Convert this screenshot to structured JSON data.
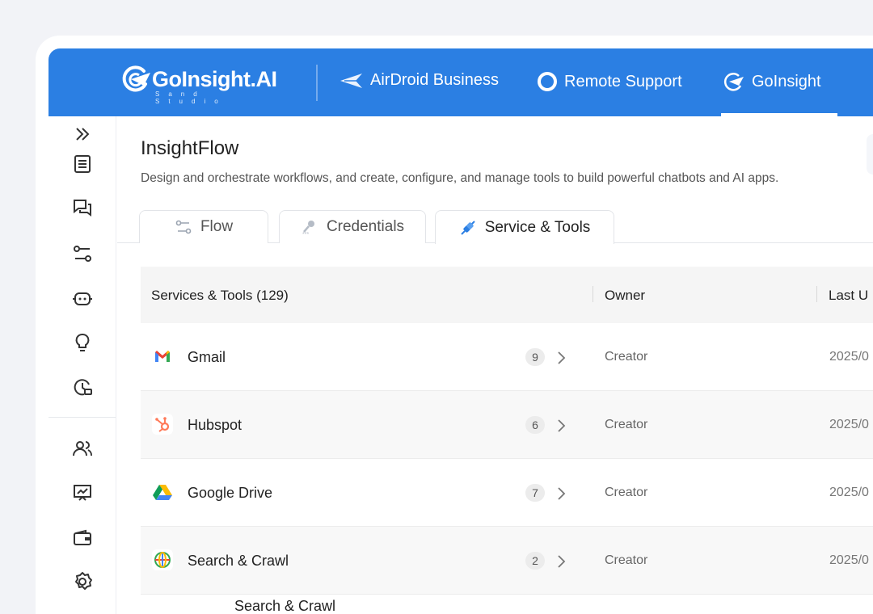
{
  "header": {
    "logo_text": "GoInsight.AI",
    "logo_sub": "Sand Studio",
    "products": [
      {
        "label": "AirDroid Business",
        "icon": "paper-plane-icon"
      },
      {
        "label": "Remote Support",
        "icon": "lifebuoy-icon"
      },
      {
        "label": "GoInsight",
        "icon": "goinsight-icon",
        "active": true
      }
    ]
  },
  "sidebar": {
    "items": [
      "expand-icon",
      "document-icon",
      "chat-icon",
      "workflow-icon",
      "robot-icon",
      "lightbulb-icon",
      "history-icon",
      "users-icon",
      "presentation-icon",
      "wallet-icon",
      "gear-icon"
    ]
  },
  "page": {
    "title": "InsightFlow",
    "description": "Design and orchestrate workflows, and create, configure, and manage tools to build powerful chatbots and AI apps."
  },
  "tabs": [
    {
      "label": "Flow",
      "icon": "flow-icon"
    },
    {
      "label": "Credentials",
      "icon": "key-icon"
    },
    {
      "label": "Service & Tools",
      "icon": "plug-icon",
      "active": true
    }
  ],
  "table": {
    "columns": [
      "Services & Tools (129)",
      "Owner",
      "Last U"
    ],
    "rows": [
      {
        "name": "Gmail",
        "count": "9",
        "owner": "Creator",
        "date": "2025/0"
      },
      {
        "name": "Hubspot",
        "count": "6",
        "owner": "Creator",
        "date": "2025/0"
      },
      {
        "name": "Google Drive",
        "count": "7",
        "owner": "Creator",
        "date": "2025/0"
      },
      {
        "name": "Search & Crawl",
        "count": "2",
        "owner": "Creator",
        "date": "2025/0"
      }
    ],
    "partial_row": "Search & Crawl"
  },
  "colors": {
    "brand": "#2b7fe3",
    "gmail_red": "#ea4335",
    "hubspot": "#ff7a59"
  }
}
